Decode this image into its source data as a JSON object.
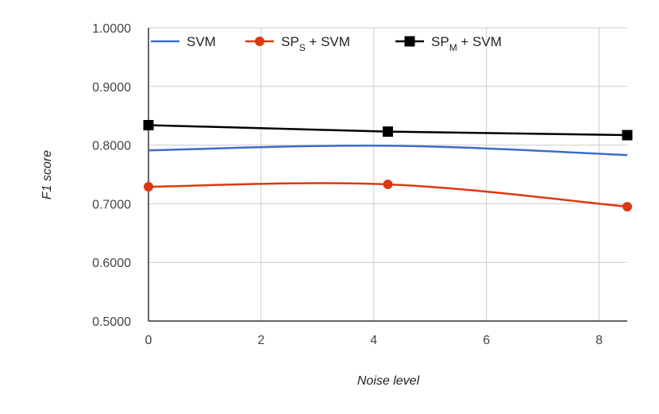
{
  "chart_data": {
    "type": "line",
    "xlabel": "Noise level",
    "ylabel": "F1 score",
    "x_ticks": [
      "0",
      "2",
      "4",
      "6",
      "8"
    ],
    "y_ticks": [
      "0.5000",
      "0.6000",
      "0.7000",
      "0.8000",
      "0.9000",
      "1.0000"
    ],
    "xlim": [
      0,
      8.5
    ],
    "ylim": [
      0.5,
      1.0
    ],
    "grid": true,
    "legend_position": "top",
    "series": [
      {
        "name": "SVM",
        "legend_main": "SVM",
        "legend_sub": "",
        "legend_tail": "",
        "color": "#3c6ccc",
        "marker": "none",
        "smooth": true,
        "x": [
          0,
          4.25,
          8.5
        ],
        "values": [
          0.791,
          0.799,
          0.783
        ]
      },
      {
        "name": "SPS + SVM",
        "legend_main": "SP",
        "legend_sub": "S",
        "legend_tail": " + SVM",
        "color": "#dc3912",
        "marker": "circle",
        "smooth": true,
        "x": [
          0,
          4.25,
          8.5
        ],
        "values": [
          0.729,
          0.733,
          0.695
        ]
      },
      {
        "name": "SPM + SVM",
        "legend_main": "SP",
        "legend_sub": "M",
        "legend_tail": " + SVM",
        "color": "#000000",
        "marker": "square",
        "smooth": false,
        "x": [
          0,
          4.25,
          8.5
        ],
        "values": [
          0.834,
          0.823,
          0.817
        ]
      }
    ]
  }
}
